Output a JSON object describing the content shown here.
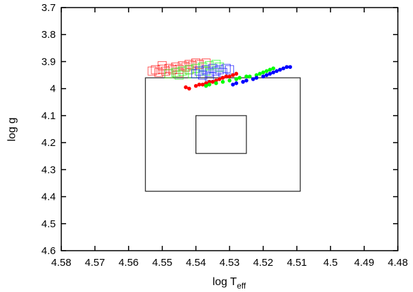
{
  "chart_data": {
    "type": "scatter",
    "title": "",
    "xlabel": "log T",
    "xlabel_sub": "eff",
    "ylabel": "log g",
    "xlim": [
      4.58,
      4.48
    ],
    "ylim": [
      3.7,
      4.6
    ],
    "x_reversed": true,
    "y_reversed": true,
    "grid": false,
    "xticks": [
      "4.58",
      "4.57",
      "4.56",
      "4.55",
      "4.54",
      "4.53",
      "4.52",
      "4.51",
      "4.5",
      "4.49",
      "4.48"
    ],
    "yticks": [
      "3.7",
      "3.8",
      "3.9",
      "4",
      "4.1",
      "4.2",
      "4.3",
      "4.4",
      "4.5",
      "4.6"
    ],
    "boxes": [
      {
        "x": [
          4.555,
          4.509
        ],
        "y": [
          3.96,
          4.38
        ]
      },
      {
        "x": [
          4.54,
          4.525
        ],
        "y": [
          4.1,
          4.24
        ]
      }
    ],
    "series": [
      {
        "marker": "open-square",
        "color": "#ff0000",
        "points": [
          [
            4.553,
            3.935
          ],
          [
            4.552,
            3.93
          ],
          [
            4.551,
            3.94
          ],
          [
            4.55,
            3.928
          ],
          [
            4.549,
            3.935
          ],
          [
            4.548,
            3.925
          ],
          [
            4.547,
            3.93
          ],
          [
            4.546,
            3.92
          ],
          [
            4.545,
            3.928
          ],
          [
            4.544,
            3.915
          ],
          [
            4.543,
            3.92
          ],
          [
            4.542,
            3.91
          ],
          [
            4.541,
            3.915
          ],
          [
            4.54,
            3.905
          ],
          [
            4.539,
            3.91
          ],
          [
            4.548,
            3.945
          ],
          [
            4.545,
            3.94
          ],
          [
            4.542,
            3.93
          ],
          [
            4.55,
            3.915
          ],
          [
            4.537,
            3.905
          ]
        ]
      },
      {
        "marker": "open-square",
        "color": "#00ff00",
        "points": [
          [
            4.548,
            3.945
          ],
          [
            4.546,
            3.94
          ],
          [
            4.544,
            3.935
          ],
          [
            4.542,
            3.93
          ],
          [
            4.54,
            3.925
          ],
          [
            4.538,
            3.92
          ],
          [
            4.536,
            3.915
          ],
          [
            4.534,
            3.91
          ],
          [
            4.533,
            3.92
          ],
          [
            4.545,
            3.95
          ],
          [
            4.541,
            3.945
          ],
          [
            4.537,
            3.935
          ]
        ]
      },
      {
        "marker": "open-square",
        "color": "#0000ff",
        "points": [
          [
            4.54,
            3.945
          ],
          [
            4.539,
            3.935
          ],
          [
            4.538,
            3.95
          ],
          [
            4.537,
            3.93
          ],
          [
            4.536,
            3.94
          ],
          [
            4.535,
            3.925
          ],
          [
            4.534,
            3.935
          ],
          [
            4.533,
            3.93
          ],
          [
            4.532,
            3.94
          ],
          [
            4.531,
            3.925
          ],
          [
            4.53,
            3.93
          ],
          [
            4.536,
            3.955
          ]
        ]
      },
      {
        "marker": "filled-circle",
        "color": "#ff0000",
        "points": [
          [
            4.543,
            3.995
          ],
          [
            4.542,
            4.0
          ],
          [
            4.54,
            3.99
          ],
          [
            4.539,
            3.985
          ],
          [
            4.538,
            3.985
          ],
          [
            4.537,
            3.98
          ],
          [
            4.536,
            3.975
          ],
          [
            4.535,
            3.975
          ],
          [
            4.534,
            3.97
          ],
          [
            4.533,
            3.965
          ],
          [
            4.532,
            3.96
          ],
          [
            4.531,
            3.955
          ],
          [
            4.53,
            3.955
          ],
          [
            4.529,
            3.95
          ],
          [
            4.528,
            3.945
          ]
        ]
      },
      {
        "marker": "filled-circle",
        "color": "#00ff00",
        "points": [
          [
            4.537,
            3.99
          ],
          [
            4.536,
            3.985
          ],
          [
            4.534,
            3.98
          ],
          [
            4.532,
            3.975
          ],
          [
            4.53,
            3.97
          ],
          [
            4.528,
            3.965
          ],
          [
            4.527,
            3.96
          ],
          [
            4.525,
            3.955
          ],
          [
            4.524,
            3.955
          ],
          [
            4.522,
            3.95
          ],
          [
            4.521,
            3.945
          ],
          [
            4.52,
            3.94
          ],
          [
            4.519,
            3.935
          ],
          [
            4.518,
            3.93
          ],
          [
            4.517,
            3.925
          ]
        ]
      },
      {
        "marker": "filled-circle",
        "color": "#0000ff",
        "points": [
          [
            4.529,
            3.985
          ],
          [
            4.528,
            3.98
          ],
          [
            4.526,
            3.975
          ],
          [
            4.525,
            3.97
          ],
          [
            4.523,
            3.965
          ],
          [
            4.522,
            3.96
          ],
          [
            4.52,
            3.955
          ],
          [
            4.519,
            3.95
          ],
          [
            4.518,
            3.945
          ],
          [
            4.517,
            3.94
          ],
          [
            4.516,
            3.935
          ],
          [
            4.515,
            3.93
          ],
          [
            4.514,
            3.925
          ],
          [
            4.513,
            3.92
          ],
          [
            4.512,
            3.92
          ]
        ]
      }
    ]
  }
}
